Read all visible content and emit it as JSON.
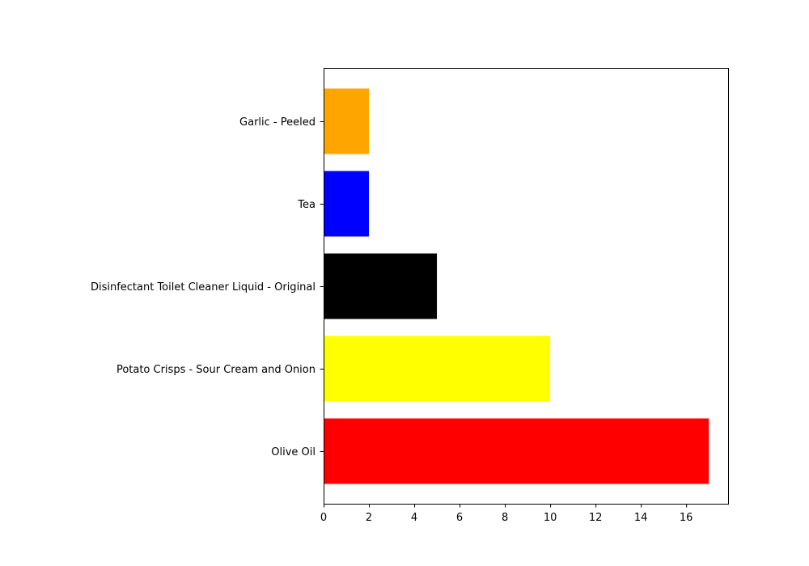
{
  "chart_data": {
    "type": "bar",
    "orientation": "horizontal",
    "title": "",
    "xlabel": "",
    "ylabel": "",
    "categories": [
      "Olive Oil",
      "Potato Crisps - Sour Cream and Onion",
      "Disinfectant Toilet Cleaner Liquid - Original",
      "Tea",
      "Garlic - Peeled"
    ],
    "values": [
      17,
      10,
      5,
      2,
      2
    ],
    "colors": [
      "#ff0000",
      "#ffff00",
      "#000000",
      "#0000ff",
      "#ffa500"
    ],
    "xlim": [
      0,
      17.85
    ],
    "xticks": [
      0,
      2,
      4,
      6,
      8,
      10,
      12,
      14,
      16
    ],
    "grid": false,
    "legend": "none"
  }
}
